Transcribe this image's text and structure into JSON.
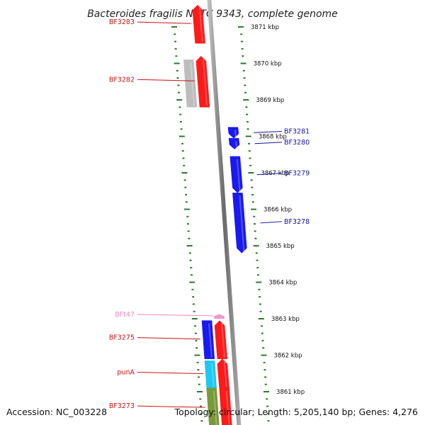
{
  "title": "Bacteroides fragilis NCTC 9343, complete genome",
  "footer": {
    "accession": "Accession: NC_003228",
    "topology": "Topology: circular; Length: 5,205,140 bp; Genes: 4,276"
  },
  "colors": {
    "red": "#ff1a1a",
    "blue": "#1a1aee",
    "grey": "#bdbdbd",
    "cyan": "#1ec8f0",
    "olive": "#7a9a3a",
    "pink": "#ee99cc",
    "tick_green": "#2a7a2a",
    "label_red": "#cc1111",
    "label_blue": "#1111aa",
    "label_pink": "#ee88bb"
  },
  "kbp_ticks": [
    {
      "kbp": 3871,
      "label": "3871 kbp"
    },
    {
      "kbp": 3870,
      "label": "3870 kbp"
    },
    {
      "kbp": 3869,
      "label": "3869 kbp"
    },
    {
      "kbp": 3868,
      "label": "3868 kbp"
    },
    {
      "kbp": 3867,
      "label": "3867 kbp"
    },
    {
      "kbp": 3866,
      "label": "3866 kbp"
    },
    {
      "kbp": 3865,
      "label": "3865 kbp"
    },
    {
      "kbp": 3864,
      "label": "3864 kbp"
    },
    {
      "kbp": 3863,
      "label": "3863 kbp"
    },
    {
      "kbp": 3862,
      "label": "3862 kbp"
    },
    {
      "kbp": 3861,
      "label": "3861 kbp"
    }
  ],
  "genes": [
    {
      "name": "BF3283",
      "strand": "+",
      "start_kbp": 3870.55,
      "end_kbp": 3871.6,
      "color": "red",
      "label_side": "left",
      "label_color": "label_red",
      "arrow": true
    },
    {
      "name": "BF3282",
      "strand": "+",
      "start_kbp": 3868.8,
      "end_kbp": 3870.2,
      "color": "red",
      "label_side": "left",
      "label_color": "label_red",
      "arrow": true
    },
    {
      "name": "",
      "strand": "o",
      "start_kbp": 3868.8,
      "end_kbp": 3870.1,
      "color": "grey",
      "label_side": "none",
      "label_color": "label_red",
      "arrow": false
    },
    {
      "name": "BF3281",
      "strand": "-",
      "start_kbp": 3867.95,
      "end_kbp": 3868.25,
      "color": "blue",
      "label_side": "right",
      "label_color": "label_blue",
      "arrow": true
    },
    {
      "name": "BF3280",
      "strand": "-",
      "start_kbp": 3867.65,
      "end_kbp": 3867.95,
      "color": "blue",
      "label_side": "right",
      "label_color": "label_blue",
      "arrow": true
    },
    {
      "name": "BF3279",
      "strand": "-",
      "start_kbp": 3866.45,
      "end_kbp": 3867.45,
      "color": "blue",
      "label_side": "right",
      "label_color": "label_blue",
      "arrow": true
    },
    {
      "name": "BF3278",
      "strand": "-",
      "start_kbp": 3864.8,
      "end_kbp": 3866.45,
      "color": "blue",
      "label_side": "right",
      "label_color": "label_blue",
      "arrow": true
    },
    {
      "name": "BFt47",
      "strand": "+",
      "start_kbp": 3863.0,
      "end_kbp": 3863.12,
      "color": "pink",
      "label_side": "left",
      "label_color": "label_pink",
      "arrow": true
    },
    {
      "name": "",
      "strand": "+",
      "start_kbp": 3861.9,
      "end_kbp": 3862.95,
      "color": "red",
      "label_side": "none",
      "label_color": "label_red",
      "arrow": true
    },
    {
      "name": "BF3275",
      "strand": "o",
      "start_kbp": 3861.9,
      "end_kbp": 3862.95,
      "color": "blue",
      "label_side": "left",
      "label_color": "label_red",
      "arrow": false
    },
    {
      "name": "",
      "strand": "+",
      "start_kbp": 3861.1,
      "end_kbp": 3861.9,
      "color": "red",
      "label_side": "none",
      "label_color": "label_red",
      "arrow": true
    },
    {
      "name": "punA",
      "strand": "o",
      "start_kbp": 3861.1,
      "end_kbp": 3861.85,
      "color": "cyan",
      "label_side": "left",
      "label_color": "label_red",
      "arrow": false
    },
    {
      "name": "",
      "strand": "+",
      "start_kbp": 3860.0,
      "end_kbp": 3861.1,
      "color": "red",
      "label_side": "none",
      "label_color": "label_red",
      "arrow": false
    },
    {
      "name": "BF3273",
      "strand": "o",
      "start_kbp": 3860.0,
      "end_kbp": 3861.1,
      "color": "olive",
      "label_side": "left",
      "label_color": "label_red",
      "arrow": false
    }
  ]
}
